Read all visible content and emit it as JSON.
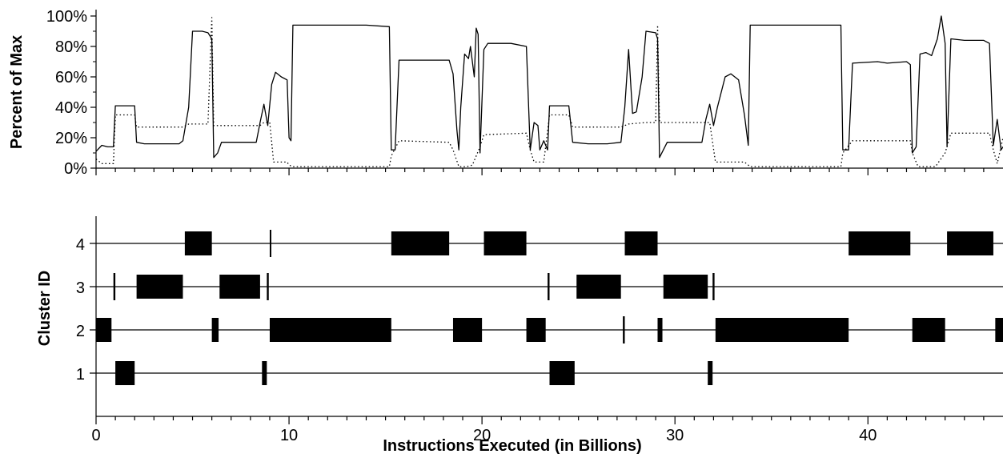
{
  "chart_data": [
    {
      "type": "line",
      "ylabel": "Percent of Max",
      "xlim": [
        0,
        47
      ],
      "ylim": [
        0,
        100
      ],
      "y_ticks": [
        "0%",
        "20%",
        "40%",
        "60%",
        "80%",
        "100%"
      ],
      "y_tick_values": [
        0,
        20,
        40,
        60,
        80,
        100
      ],
      "series": [
        {
          "style": "solid",
          "color": "#000000",
          "points": [
            [
              0,
              11
            ],
            [
              0.3,
              15
            ],
            [
              0.6,
              14
            ],
            [
              0.9,
              14
            ],
            [
              1.0,
              41
            ],
            [
              2.0,
              41
            ],
            [
              2.1,
              17
            ],
            [
              2.5,
              16
            ],
            [
              3.5,
              16
            ],
            [
              4.3,
              16
            ],
            [
              4.5,
              18
            ],
            [
              4.8,
              40
            ],
            [
              5.0,
              90
            ],
            [
              5.5,
              90
            ],
            [
              5.8,
              89
            ],
            [
              6.0,
              85
            ],
            [
              6.1,
              7
            ],
            [
              6.3,
              10
            ],
            [
              6.5,
              17
            ],
            [
              7.5,
              17
            ],
            [
              8.3,
              17
            ],
            [
              8.5,
              30
            ],
            [
              8.7,
              42
            ],
            [
              8.9,
              28
            ],
            [
              9.1,
              55
            ],
            [
              9.3,
              63
            ],
            [
              9.6,
              60
            ],
            [
              9.9,
              58
            ],
            [
              10.0,
              20
            ],
            [
              10.1,
              18
            ],
            [
              10.2,
              94
            ],
            [
              12.0,
              94
            ],
            [
              14.0,
              94
            ],
            [
              15.2,
              93
            ],
            [
              15.3,
              12
            ],
            [
              15.5,
              12
            ],
            [
              15.7,
              71
            ],
            [
              17.0,
              71
            ],
            [
              18.3,
              71
            ],
            [
              18.5,
              62
            ],
            [
              18.7,
              25
            ],
            [
              18.8,
              12
            ],
            [
              18.9,
              40
            ],
            [
              19.1,
              75
            ],
            [
              19.3,
              72
            ],
            [
              19.4,
              80
            ],
            [
              19.6,
              60
            ],
            [
              19.7,
              92
            ],
            [
              19.8,
              88
            ],
            [
              19.9,
              10
            ],
            [
              20.1,
              78
            ],
            [
              20.3,
              82
            ],
            [
              21.5,
              82
            ],
            [
              22.3,
              80
            ],
            [
              22.5,
              12
            ],
            [
              22.7,
              30
            ],
            [
              22.9,
              28
            ],
            [
              23.0,
              12
            ],
            [
              23.2,
              18
            ],
            [
              23.4,
              12
            ],
            [
              23.5,
              41
            ],
            [
              24.5,
              41
            ],
            [
              24.7,
              17
            ],
            [
              25.5,
              16
            ],
            [
              26.5,
              16
            ],
            [
              27.2,
              17
            ],
            [
              27.4,
              40
            ],
            [
              27.6,
              78
            ],
            [
              27.8,
              36
            ],
            [
              28.0,
              37
            ],
            [
              28.3,
              60
            ],
            [
              28.5,
              90
            ],
            [
              29.0,
              89
            ],
            [
              29.1,
              85
            ],
            [
              29.2,
              7
            ],
            [
              29.4,
              12
            ],
            [
              29.6,
              17
            ],
            [
              30.5,
              17
            ],
            [
              31.4,
              17
            ],
            [
              31.6,
              32
            ],
            [
              31.8,
              42
            ],
            [
              32.0,
              28
            ],
            [
              32.2,
              40
            ],
            [
              32.6,
              60
            ],
            [
              32.9,
              62
            ],
            [
              33.3,
              58
            ],
            [
              33.6,
              35
            ],
            [
              33.8,
              15
            ],
            [
              33.9,
              94
            ],
            [
              35.0,
              94
            ],
            [
              37.0,
              94
            ],
            [
              38.6,
              94
            ],
            [
              38.7,
              12
            ],
            [
              39.0,
              12
            ],
            [
              39.2,
              69
            ],
            [
              40.5,
              70
            ],
            [
              41.0,
              69
            ],
            [
              42.0,
              70
            ],
            [
              42.2,
              68
            ],
            [
              42.3,
              10
            ],
            [
              42.5,
              14
            ],
            [
              42.7,
              75
            ],
            [
              43.0,
              76
            ],
            [
              43.3,
              74
            ],
            [
              43.6,
              85
            ],
            [
              43.8,
              100
            ],
            [
              44.0,
              82
            ],
            [
              44.1,
              14
            ],
            [
              44.3,
              85
            ],
            [
              45.0,
              84
            ],
            [
              46.0,
              84
            ],
            [
              46.3,
              82
            ],
            [
              46.5,
              15
            ],
            [
              46.7,
              32
            ],
            [
              46.9,
              12
            ],
            [
              47.0,
              14
            ]
          ]
        },
        {
          "style": "dotted",
          "color": "#000000",
          "points": [
            [
              0,
              6
            ],
            [
              0.3,
              3
            ],
            [
              0.6,
              3
            ],
            [
              0.9,
              3
            ],
            [
              1.0,
              35
            ],
            [
              2.0,
              35
            ],
            [
              2.1,
              27
            ],
            [
              3.5,
              27
            ],
            [
              4.5,
              27
            ],
            [
              4.8,
              29
            ],
            [
              5.8,
              29
            ],
            [
              6.0,
              99
            ],
            [
              6.1,
              28
            ],
            [
              8.5,
              28
            ],
            [
              8.7,
              30
            ],
            [
              9.0,
              30
            ],
            [
              9.2,
              4
            ],
            [
              9.9,
              4
            ],
            [
              10.0,
              2
            ],
            [
              10.2,
              1
            ],
            [
              15.2,
              1
            ],
            [
              15.3,
              8
            ],
            [
              15.7,
              18
            ],
            [
              18.3,
              17
            ],
            [
              18.5,
              12
            ],
            [
              18.8,
              1
            ],
            [
              19.2,
              1
            ],
            [
              19.5,
              2
            ],
            [
              19.9,
              14
            ],
            [
              20.1,
              22
            ],
            [
              22.3,
              23
            ],
            [
              22.5,
              12
            ],
            [
              22.7,
              4
            ],
            [
              23.2,
              4
            ],
            [
              23.5,
              35
            ],
            [
              24.5,
              35
            ],
            [
              24.7,
              27
            ],
            [
              27.2,
              27
            ],
            [
              27.6,
              29
            ],
            [
              28.5,
              30
            ],
            [
              29.0,
              30
            ],
            [
              29.1,
              94
            ],
            [
              29.2,
              30
            ],
            [
              31.4,
              30
            ],
            [
              31.8,
              30
            ],
            [
              32.1,
              4
            ],
            [
              33.6,
              4
            ],
            [
              33.9,
              1
            ],
            [
              38.6,
              1
            ],
            [
              38.7,
              10
            ],
            [
              39.2,
              18
            ],
            [
              42.2,
              18
            ],
            [
              42.3,
              10
            ],
            [
              42.6,
              1
            ],
            [
              43.5,
              1
            ],
            [
              44.0,
              10
            ],
            [
              44.3,
              23
            ],
            [
              46.3,
              23
            ],
            [
              46.5,
              12
            ],
            [
              46.7,
              3
            ],
            [
              47.0,
              20
            ]
          ]
        }
      ]
    },
    {
      "type": "timeline",
      "xlabel": "Instructions Executed (in Billions)",
      "ylabel": "Cluster ID",
      "xlim": [
        0,
        47
      ],
      "x_ticks": [
        "0",
        "10",
        "20",
        "30",
        "40"
      ],
      "x_tick_values": [
        0,
        10,
        20,
        30,
        40
      ],
      "clusters": [
        "1",
        "2",
        "3",
        "4"
      ],
      "segments": {
        "1": [
          [
            1.0,
            2.0
          ],
          [
            8.6,
            8.85
          ],
          [
            23.5,
            24.8
          ],
          [
            31.7,
            31.95
          ]
        ],
        "2": [
          [
            0.0,
            0.8
          ],
          [
            6.0,
            6.35
          ],
          [
            9.0,
            15.3
          ],
          [
            18.5,
            20.0
          ],
          [
            22.3,
            23.3
          ],
          [
            27.3,
            27.4
          ],
          [
            29.1,
            29.35
          ],
          [
            32.1,
            39.0
          ],
          [
            42.3,
            44.0
          ],
          [
            46.6,
            47.0
          ]
        ],
        "3": [
          [
            0.9,
            1.0
          ],
          [
            2.1,
            4.5
          ],
          [
            6.4,
            8.5
          ],
          [
            8.85,
            8.95
          ],
          [
            23.4,
            23.5
          ],
          [
            24.9,
            27.2
          ],
          [
            29.4,
            31.7
          ],
          [
            31.95,
            32.05
          ]
        ],
        "4": [
          [
            4.6,
            6.0
          ],
          [
            9.0,
            9.05
          ],
          [
            15.3,
            18.3
          ],
          [
            20.1,
            22.3
          ],
          [
            27.4,
            29.1
          ],
          [
            39.0,
            42.2
          ],
          [
            44.1,
            46.5
          ]
        ]
      }
    }
  ]
}
